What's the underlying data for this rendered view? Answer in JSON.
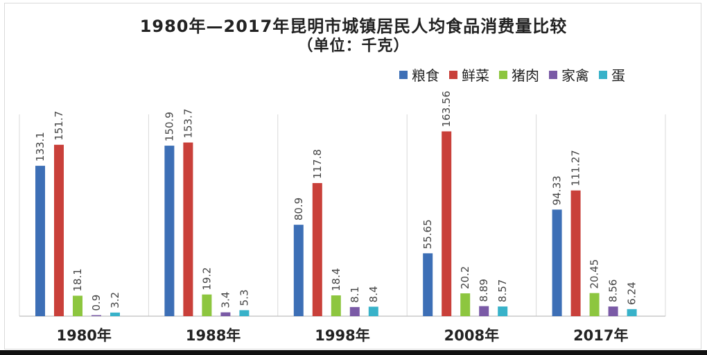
{
  "chart_data": {
    "type": "bar",
    "title": "1980年—2017年昆明市城镇居民人均食品消费量比较",
    "subtitle": "（单位：千克）",
    "categories": [
      "1980年",
      "1988年",
      "1998年",
      "2008年",
      "2017年"
    ],
    "series": [
      {
        "name": "粮食",
        "color": "#3d6fb6",
        "values": [
          133.1,
          150.9,
          80.9,
          55.65,
          94.33
        ],
        "labels": [
          "133.1",
          "150.9",
          "80.9",
          "55.65",
          "94.33"
        ]
      },
      {
        "name": "鲜菜",
        "color": "#c9403a",
        "values": [
          151.7,
          153.7,
          117.8,
          163.56,
          111.27
        ],
        "labels": [
          "151.7",
          "153.7",
          "117.8",
          "163.56",
          "111.27"
        ]
      },
      {
        "name": "猪肉",
        "color": "#8dc63f",
        "values": [
          18.1,
          19.2,
          18.4,
          20.2,
          20.45
        ],
        "labels": [
          "18.1",
          "19.2",
          "18.4",
          "20.2",
          "20.45"
        ]
      },
      {
        "name": "家禽",
        "color": "#7a5aa6",
        "values": [
          0.9,
          3.4,
          8.1,
          8.89,
          8.56
        ],
        "labels": [
          "0.9",
          "3.4",
          "8.1",
          "8.89",
          "8.56"
        ]
      },
      {
        "name": "蛋",
        "color": "#38b2c9",
        "values": [
          3.2,
          5.3,
          8.4,
          8.57,
          6.24
        ],
        "labels": [
          "3.2",
          "5.3",
          "8.4",
          "8.57",
          "6.24"
        ]
      }
    ],
    "ylim": [
      0,
      175
    ],
    "legend_position": "top-right",
    "grid": false
  }
}
